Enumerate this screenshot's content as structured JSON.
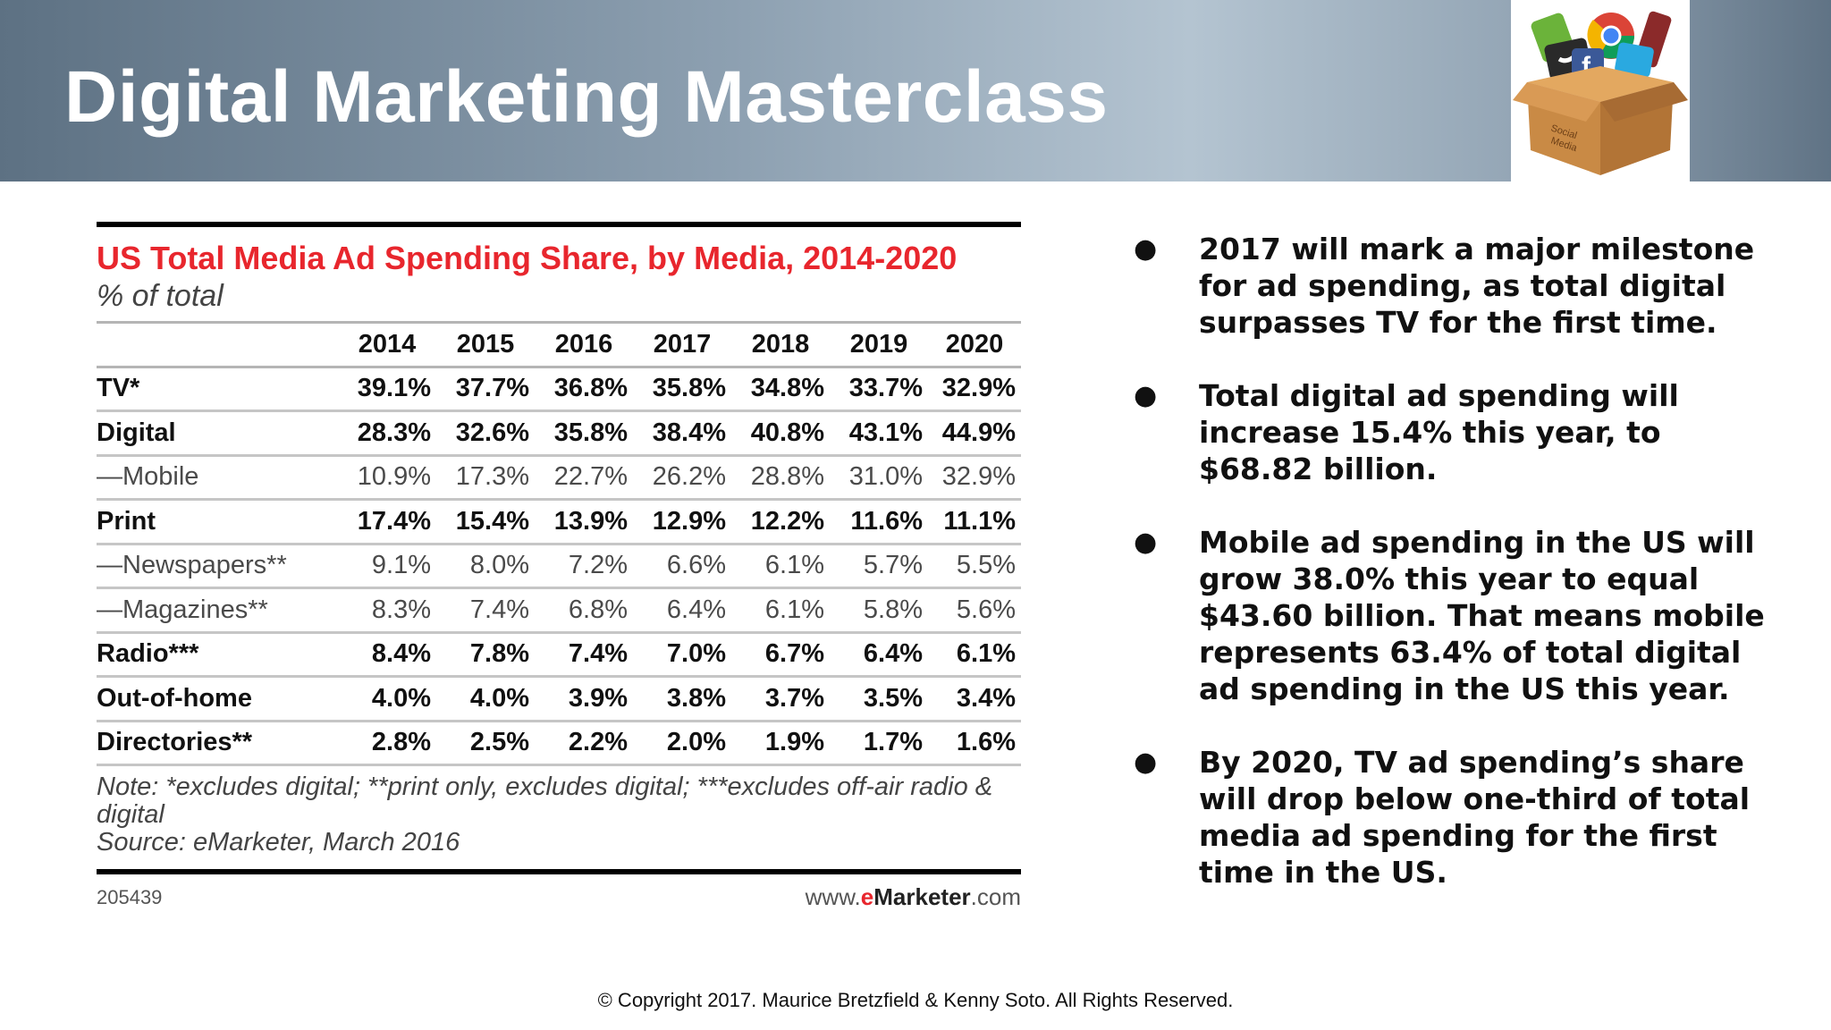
{
  "header": {
    "title": "Digital Marketing Masterclass"
  },
  "chart": {
    "title": "US Total Media Ad Spending Share, by Media, 2014-2020",
    "subtitle": "% of total",
    "note": "Note: *excludes digital; **print only, excludes digital; ***excludes off-air radio & digital",
    "source": "Source: eMarketer, March 2016",
    "chart_id": "205439",
    "brand_prefix": "www.",
    "brand_e": "e",
    "brand_name": "Marketer",
    "brand_suffix": ".com"
  },
  "chart_data": {
    "type": "table",
    "title": "US Total Media Ad Spending Share, by Media, 2014-2020",
    "subtitle": "% of total",
    "columns": [
      "2014",
      "2015",
      "2016",
      "2017",
      "2018",
      "2019",
      "2020"
    ],
    "rows": [
      {
        "label": "TV*",
        "values": [
          "39.1%",
          "37.7%",
          "36.8%",
          "35.8%",
          "34.8%",
          "33.7%",
          "32.9%"
        ],
        "style": "bold"
      },
      {
        "label": "Digital",
        "values": [
          "28.3%",
          "32.6%",
          "35.8%",
          "38.4%",
          "40.8%",
          "43.1%",
          "44.9%"
        ],
        "style": "bold"
      },
      {
        "label": "—Mobile",
        "values": [
          "10.9%",
          "17.3%",
          "22.7%",
          "26.2%",
          "28.8%",
          "31.0%",
          "32.9%"
        ],
        "style": "sub"
      },
      {
        "label": "Print",
        "values": [
          "17.4%",
          "15.4%",
          "13.9%",
          "12.9%",
          "12.2%",
          "11.6%",
          "11.1%"
        ],
        "style": "bold"
      },
      {
        "label": "—Newspapers**",
        "values": [
          "9.1%",
          "8.0%",
          "7.2%",
          "6.6%",
          "6.1%",
          "5.7%",
          "5.5%"
        ],
        "style": "sub"
      },
      {
        "label": "—Magazines**",
        "values": [
          "8.3%",
          "7.4%",
          "6.8%",
          "6.4%",
          "6.1%",
          "5.8%",
          "5.6%"
        ],
        "style": "sub"
      },
      {
        "label": "Radio***",
        "values": [
          "8.4%",
          "7.8%",
          "7.4%",
          "7.0%",
          "6.7%",
          "6.4%",
          "6.1%"
        ],
        "style": "bold"
      },
      {
        "label": "Out-of-home",
        "values": [
          "4.0%",
          "4.0%",
          "3.9%",
          "3.8%",
          "3.7%",
          "3.5%",
          "3.4%"
        ],
        "style": "bold"
      },
      {
        "label": "Directories**",
        "values": [
          "2.8%",
          "2.5%",
          "2.2%",
          "2.0%",
          "1.9%",
          "1.7%",
          "1.6%"
        ],
        "style": "bold"
      }
    ]
  },
  "bullets": [
    "2017 will mark a major milestone for ad spending, as total digital surpasses TV for the first time.",
    "Total digital ad spending will increase 15.4% this year, to $68.82 billion.",
    "Mobile ad spending in the US will grow 38.0% this year to equal $43.60 billion. That means mobile represents 63.4% of total digital ad spending in the US this year.",
    "By 2020, TV ad spending’s share will drop below one-third of total media ad spending for the first time in the US."
  ],
  "bullet_symbol": "●",
  "footer": {
    "copyright": "© Copyright 2017. Maurice Bretzfield & Kenny Soto. All Rights Reserved."
  },
  "logo": {
    "icon": "social-media-box-icon",
    "box_text": "Social Media",
    "colors": {
      "box": "#c98a45",
      "twitter": "#2aa9e0",
      "facebook": "#3b5998",
      "chrome_red": "#db4437",
      "chrome_yellow": "#f4b400",
      "chrome_green": "#0f9d58",
      "leaf": "#6bb33a"
    }
  }
}
